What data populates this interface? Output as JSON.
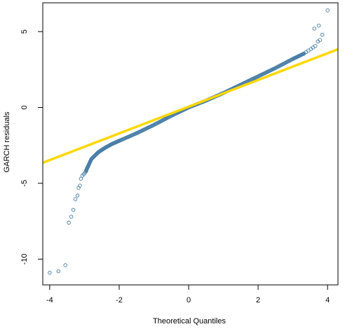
{
  "chart_data": {
    "type": "scatter",
    "title": "",
    "xlabel": "Theoretical Quantiles",
    "ylabel": "GARCH residuals",
    "xlim": [
      -4.2,
      4.3
    ],
    "ylim": [
      -11.7,
      6.9
    ],
    "x_ticks": [
      -4,
      -2,
      0,
      2,
      4
    ],
    "y_ticks": [
      -10,
      -5,
      0,
      5
    ],
    "x_tick_labels": [
      "-4",
      "-2",
      "0",
      "2",
      "4"
    ],
    "y_tick_labels": [
      "-10",
      "-5",
      "0",
      "5"
    ],
    "grid": false,
    "colors": {
      "points": "#4a7fa8",
      "reference_line": "#ffd700",
      "axes": "#000000"
    },
    "reference_line": {
      "intercept": 0.05,
      "slope": 0.88
    },
    "tail_points": [
      [
        -4.0,
        -10.9
      ],
      [
        -3.75,
        -10.8
      ],
      [
        -3.55,
        -10.4
      ],
      [
        -3.45,
        -7.6
      ],
      [
        -3.38,
        -7.2
      ],
      [
        -3.32,
        -6.75
      ],
      [
        -3.26,
        -6.05
      ],
      [
        -3.2,
        -5.8
      ],
      [
        -3.17,
        -5.3
      ],
      [
        -3.13,
        -5.15
      ],
      [
        -3.1,
        -4.7
      ],
      [
        -3.06,
        -4.5
      ],
      [
        -3.02,
        -4.4
      ],
      [
        -2.98,
        -4.3
      ],
      [
        -2.95,
        -4.2
      ],
      [
        3.32,
        3.55
      ],
      [
        3.38,
        3.65
      ],
      [
        3.45,
        3.75
      ],
      [
        3.52,
        3.85
      ],
      [
        3.58,
        3.95
      ],
      [
        3.65,
        4.05
      ],
      [
        3.72,
        4.35
      ],
      [
        3.78,
        4.45
      ],
      [
        3.85,
        4.8
      ],
      [
        3.62,
        5.2
      ],
      [
        3.75,
        5.4
      ],
      [
        4.0,
        6.4
      ]
    ],
    "bulk_curve": [
      [
        -2.95,
        -4.15
      ],
      [
        -2.8,
        -3.4
      ],
      [
        -2.6,
        -2.95
      ],
      [
        -2.4,
        -2.65
      ],
      [
        -2.2,
        -2.4
      ],
      [
        -2.0,
        -2.2
      ],
      [
        -1.5,
        -1.7
      ],
      [
        -1.0,
        -1.15
      ],
      [
        -0.5,
        -0.55
      ],
      [
        0.0,
        0.0
      ],
      [
        0.5,
        0.45
      ],
      [
        1.0,
        0.95
      ],
      [
        1.5,
        1.5
      ],
      [
        2.0,
        2.05
      ],
      [
        2.5,
        2.6
      ],
      [
        3.0,
        3.2
      ],
      [
        3.32,
        3.55
      ]
    ]
  }
}
